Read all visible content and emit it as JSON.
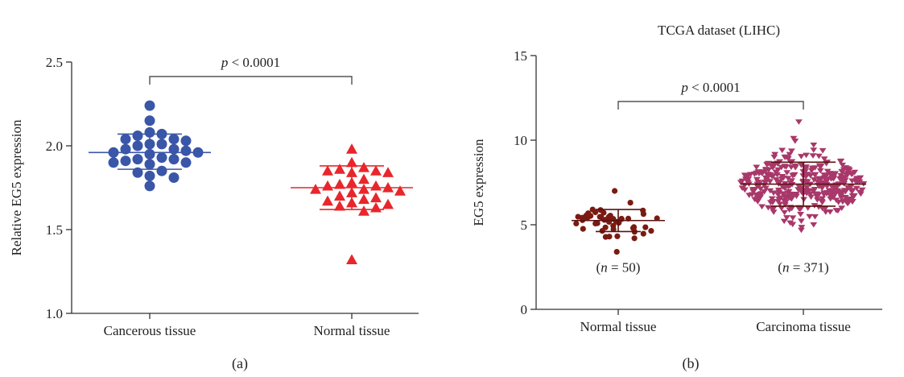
{
  "panels": {
    "a": {
      "caption": "(a)"
    },
    "b": {
      "caption": "(b)"
    }
  },
  "chart_data": [
    {
      "type": "scatter",
      "title": "",
      "xlabel": "",
      "ylabel": "Relative EG5 expression",
      "ylim": [
        1.0,
        2.5
      ],
      "yticks": [
        "1.0",
        "1.5",
        "2.0",
        "2.5"
      ],
      "categories": [
        "Cancerous tissue",
        "Normal tissue"
      ],
      "annotation": "p < 0.0001",
      "series": [
        {
          "category": "Cancerous tissue",
          "marker": "circle",
          "color": "#3a56a8",
          "mean": 1.96,
          "sd_low": 1.86,
          "sd_high": 2.07,
          "points": [
            2.24,
            2.15,
            2.08,
            2.07,
            2.06,
            2.04,
            2.04,
            2.03,
            2.01,
            2.01,
            2.0,
            1.98,
            1.98,
            1.97,
            1.96,
            1.96,
            1.95,
            1.93,
            1.92,
            1.92,
            1.91,
            1.9,
            1.9,
            1.89,
            1.85,
            1.84,
            1.82,
            1.81,
            1.76
          ]
        },
        {
          "category": "Normal tissue",
          "marker": "triangle",
          "color": "#e8262b",
          "mean": 1.75,
          "sd_low": 1.62,
          "sd_high": 1.88,
          "points": [
            1.98,
            1.9,
            1.87,
            1.86,
            1.85,
            1.85,
            1.84,
            1.84,
            1.8,
            1.78,
            1.77,
            1.76,
            1.76,
            1.75,
            1.74,
            1.74,
            1.73,
            1.72,
            1.7,
            1.69,
            1.68,
            1.67,
            1.66,
            1.65,
            1.64,
            1.63,
            1.61,
            1.32
          ]
        }
      ]
    },
    {
      "type": "scatter",
      "title": "TCGA dataset (LIHC)",
      "xlabel": "",
      "ylabel": "EG5 expression",
      "ylim": [
        0,
        15
      ],
      "yticks": [
        "0",
        "5",
        "10",
        "15"
      ],
      "categories": [
        "Normal tissue",
        "Carcinoma tissue"
      ],
      "annotation": "p < 0.0001",
      "n_labels": [
        "(n = 50)",
        "(n = 371)"
      ],
      "series": [
        {
          "category": "Normal tissue",
          "marker": "circle",
          "color": "#7a1b12",
          "n": 50,
          "mean": 5.25,
          "sd_low": 4.6,
          "sd_high": 5.9,
          "min": 3.4,
          "max": 7.0
        },
        {
          "category": "Carcinoma tissue",
          "marker": "triangle-down",
          "color": "#a8386a",
          "n": 371,
          "mean": 7.4,
          "sd_low": 6.1,
          "sd_high": 8.7,
          "min": 4.7,
          "max": 11.1
        }
      ]
    }
  ]
}
